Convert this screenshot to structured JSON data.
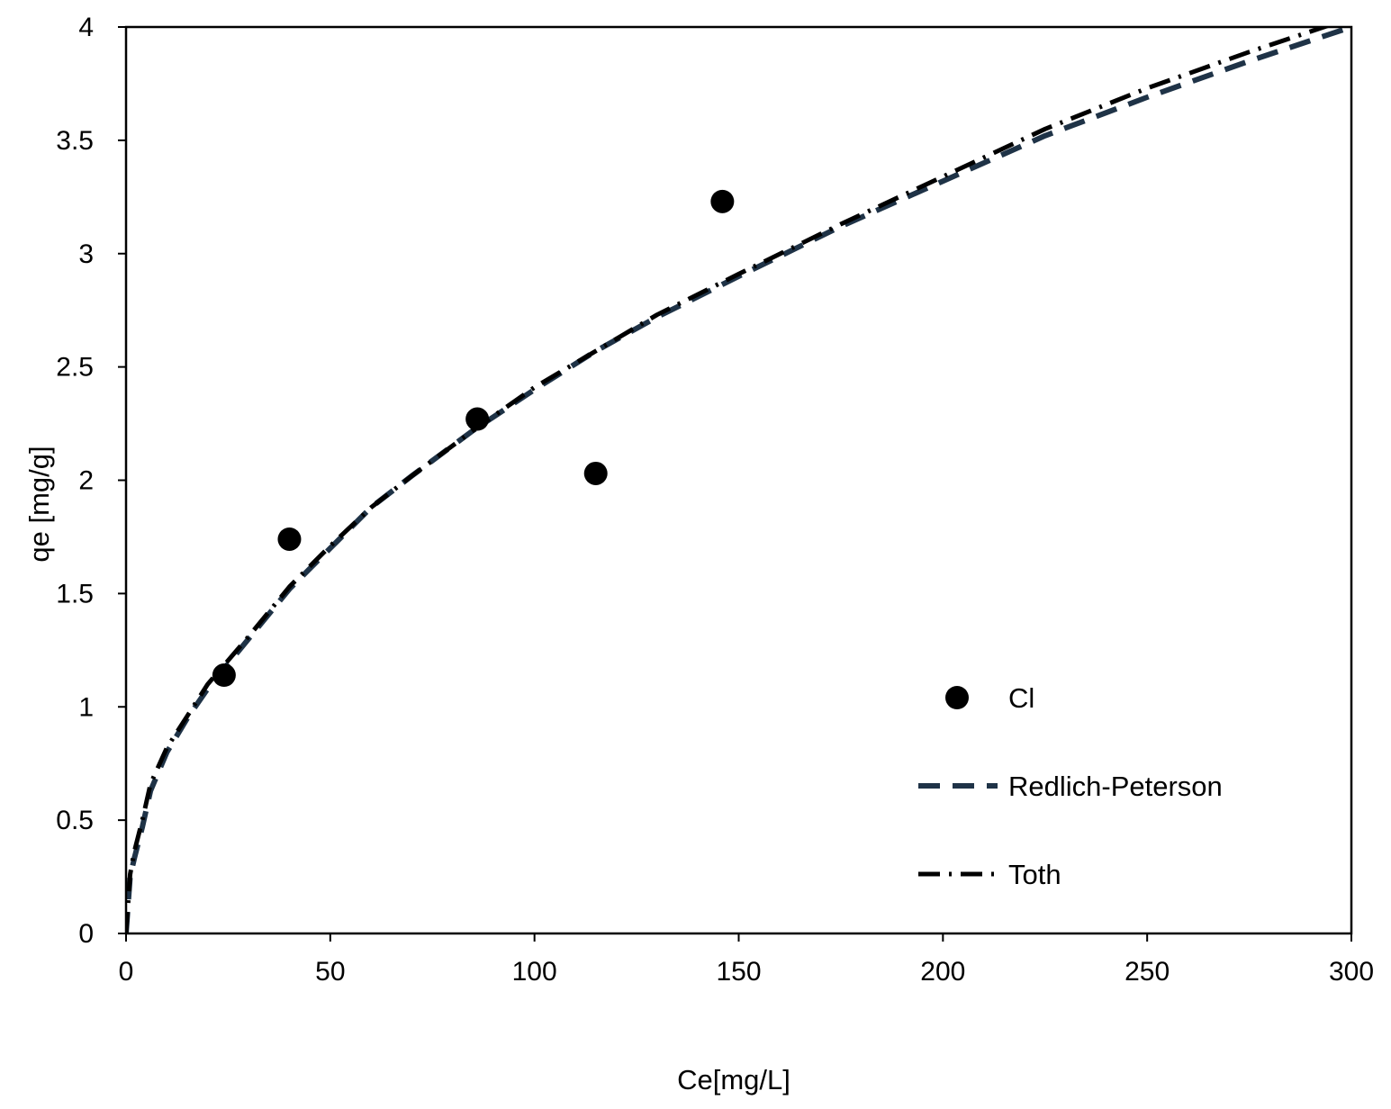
{
  "chart_data": {
    "type": "scatter",
    "title": "",
    "xlabel": "Ce[mg/L]",
    "ylabel": "qe [mg/g]",
    "xlim": [
      0,
      300
    ],
    "ylim": [
      0,
      4
    ],
    "x_ticks": [
      0,
      50,
      100,
      150,
      200,
      250,
      300
    ],
    "y_ticks": [
      0,
      0.5,
      1,
      1.5,
      2,
      2.5,
      3,
      3.5,
      4
    ],
    "x_tick_labels": [
      "0",
      "50",
      "100",
      "150",
      "200",
      "250",
      "300"
    ],
    "y_tick_labels": [
      "0",
      "0.5",
      "1",
      "1.5",
      "2",
      "2.5",
      "3",
      "3.5",
      "4"
    ],
    "grid": false,
    "legend_position": "bottom-right",
    "series": [
      {
        "name": "Cl",
        "kind": "scatter",
        "marker": "circle",
        "color": "#000000",
        "points": [
          {
            "x": 24,
            "y": 1.14
          },
          {
            "x": 40,
            "y": 1.74
          },
          {
            "x": 86,
            "y": 2.27
          },
          {
            "x": 115,
            "y": 2.03
          },
          {
            "x": 146,
            "y": 3.23
          }
        ]
      },
      {
        "name": "Redlich-Peterson",
        "kind": "line",
        "style": "dashed",
        "color": "#1f3347",
        "points": [
          {
            "x": 0,
            "y": 0
          },
          {
            "x": 1,
            "y": 0.25
          },
          {
            "x": 2,
            "y": 0.33
          },
          {
            "x": 4,
            "y": 0.47
          },
          {
            "x": 6,
            "y": 0.63
          },
          {
            "x": 10,
            "y": 0.8
          },
          {
            "x": 15,
            "y": 0.95
          },
          {
            "x": 20,
            "y": 1.08
          },
          {
            "x": 30,
            "y": 1.3
          },
          {
            "x": 40,
            "y": 1.52
          },
          {
            "x": 50,
            "y": 1.7
          },
          {
            "x": 60,
            "y": 1.88
          },
          {
            "x": 70,
            "y": 2.02
          },
          {
            "x": 85,
            "y": 2.22
          },
          {
            "x": 100,
            "y": 2.4
          },
          {
            "x": 115,
            "y": 2.57
          },
          {
            "x": 130,
            "y": 2.72
          },
          {
            "x": 150,
            "y": 2.9
          },
          {
            "x": 175,
            "y": 3.12
          },
          {
            "x": 200,
            "y": 3.32
          },
          {
            "x": 225,
            "y": 3.52
          },
          {
            "x": 250,
            "y": 3.69
          },
          {
            "x": 275,
            "y": 3.85
          },
          {
            "x": 300,
            "y": 4.0
          }
        ]
      },
      {
        "name": "Toth",
        "kind": "line",
        "style": "dash-dot",
        "color": "#000000",
        "points": [
          {
            "x": 0,
            "y": 0
          },
          {
            "x": 1,
            "y": 0.26
          },
          {
            "x": 2,
            "y": 0.36
          },
          {
            "x": 4,
            "y": 0.5
          },
          {
            "x": 6,
            "y": 0.66
          },
          {
            "x": 10,
            "y": 0.82
          },
          {
            "x": 15,
            "y": 0.96
          },
          {
            "x": 20,
            "y": 1.1
          },
          {
            "x": 30,
            "y": 1.31
          },
          {
            "x": 40,
            "y": 1.53
          },
          {
            "x": 50,
            "y": 1.71
          },
          {
            "x": 60,
            "y": 1.88
          },
          {
            "x": 70,
            "y": 2.02
          },
          {
            "x": 85,
            "y": 2.22
          },
          {
            "x": 100,
            "y": 2.41
          },
          {
            "x": 115,
            "y": 2.57
          },
          {
            "x": 130,
            "y": 2.73
          },
          {
            "x": 150,
            "y": 2.91
          },
          {
            "x": 175,
            "y": 3.13
          },
          {
            "x": 200,
            "y": 3.34
          },
          {
            "x": 225,
            "y": 3.55
          },
          {
            "x": 250,
            "y": 3.73
          },
          {
            "x": 275,
            "y": 3.89
          },
          {
            "x": 300,
            "y": 4.04
          }
        ]
      }
    ]
  }
}
